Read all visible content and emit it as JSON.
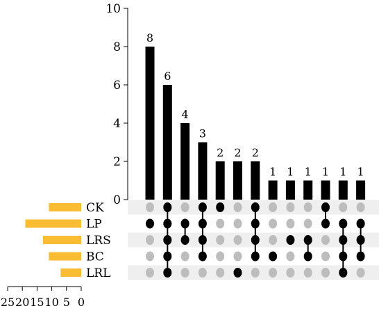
{
  "chart_data": {
    "type": "upset",
    "sets": [
      {
        "name": "CK",
        "size": 11
      },
      {
        "name": "LP",
        "size": 19
      },
      {
        "name": "LRS",
        "size": 13
      },
      {
        "name": "BC",
        "size": 11
      },
      {
        "name": "LRL",
        "size": 7
      }
    ],
    "intersections": [
      {
        "sets": [
          "LP"
        ],
        "value": 8
      },
      {
        "sets": [
          "CK",
          "LP",
          "LRS",
          "BC",
          "LRL"
        ],
        "value": 6
      },
      {
        "sets": [
          "LP",
          "LRS"
        ],
        "value": 4
      },
      {
        "sets": [
          "CK",
          "LP",
          "LRS",
          "BC"
        ],
        "value": 3
      },
      {
        "sets": [
          "CK"
        ],
        "value": 2
      },
      {
        "sets": [
          "LRL"
        ],
        "value": 2
      },
      {
        "sets": [
          "CK",
          "LP",
          "LRS",
          "BC"
        ],
        "value": 2
      },
      {
        "sets": [
          "BC"
        ],
        "value": 1
      },
      {
        "sets": [
          "LRS"
        ],
        "value": 1
      },
      {
        "sets": [
          "LRS",
          "BC"
        ],
        "value": 1
      },
      {
        "sets": [
          "CK",
          "LP"
        ],
        "value": 1
      },
      {
        "sets": [
          "LP",
          "LRS",
          "BC",
          "LRL"
        ],
        "value": 1
      },
      {
        "sets": [
          "LP",
          "LRS",
          "BC"
        ],
        "value": 1
      }
    ],
    "intersection_axis": {
      "ylim": [
        0,
        10
      ],
      "ticks": [
        0,
        2,
        4,
        6,
        8,
        10
      ]
    },
    "set_size_axis": {
      "xlim": [
        25,
        0
      ],
      "ticks": [
        25,
        20,
        15,
        10,
        5,
        0
      ]
    },
    "colors": {
      "bar": "#000000",
      "set_bar": "#f9bc33",
      "dot_active": "#000000",
      "dot_inactive": "#bdbdbd",
      "stripe": "#efefef"
    }
  }
}
